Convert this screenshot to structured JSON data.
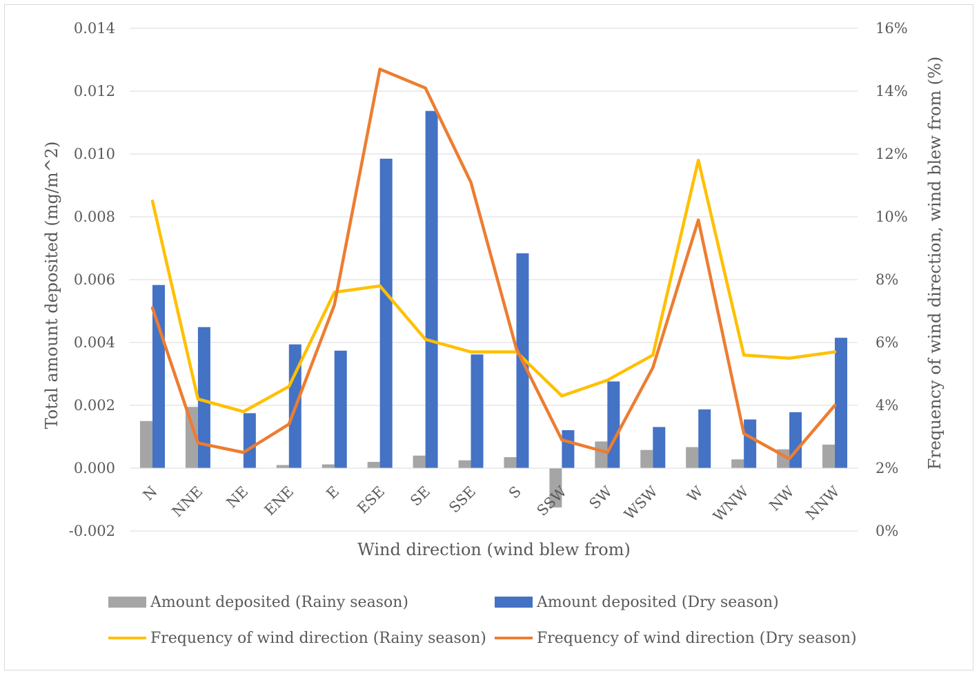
{
  "chart_data": {
    "type": "bar+line",
    "title": "",
    "xlabel": "Wind direction (wind blew from)",
    "ylabel": "Total amount deposited (mg/m^2)",
    "y2label": "Frequency of wind direction, wind blew from (%)",
    "categories": [
      "N",
      "NNE",
      "NE",
      "ENE",
      "E",
      "ESE",
      "SE",
      "SSE",
      "S",
      "SSW",
      "SW",
      "WSW",
      "W",
      "WNW",
      "NW",
      "NNW"
    ],
    "ylim": [
      -0.002,
      0.014
    ],
    "y_ticks": [
      "0.014",
      "0.012",
      "0.010",
      "0.008",
      "0.006",
      "0.004",
      "0.002",
      "0.000",
      "-0.002"
    ],
    "y_tick_values": [
      0.014,
      0.012,
      0.01,
      0.008,
      0.006,
      0.004,
      0.002,
      0.0,
      -0.002
    ],
    "y2lim": [
      0,
      16
    ],
    "y2_ticks": [
      "16%",
      "14%",
      "12%",
      "10%",
      "8%",
      "6%",
      "4%",
      "2%",
      "0%"
    ],
    "y2_tick_values": [
      16,
      14,
      12,
      10,
      8,
      6,
      4,
      2,
      0
    ],
    "grid": true,
    "legend_position": "bottom",
    "bar_series": [
      {
        "name": "Amount deposited (Rainy season)",
        "color": "#a5a5a5",
        "values": [
          0.0015,
          0.00195,
          0.0,
          0.0001,
          0.00012,
          0.0002,
          0.0004,
          0.00025,
          0.00035,
          -0.00125,
          0.00085,
          0.00058,
          0.00067,
          0.00028,
          0.0006,
          0.00075
        ]
      },
      {
        "name": "Amount deposited (Dry season)",
        "color": "#4472c4",
        "values": [
          0.00583,
          0.00449,
          0.00175,
          0.00394,
          0.00374,
          0.00985,
          0.01137,
          0.00362,
          0.00684,
          0.00121,
          0.00276,
          0.00131,
          0.00187,
          0.00155,
          0.00178,
          0.00415
        ]
      }
    ],
    "line_series": [
      {
        "name": "Frequency of wind direction (Rainy season)",
        "color": "#ffc000",
        "values": [
          10.5,
          4.2,
          3.8,
          4.6,
          7.6,
          7.8,
          6.1,
          5.7,
          5.7,
          4.3,
          4.8,
          5.6,
          11.8,
          5.6,
          5.5,
          5.7
        ]
      },
      {
        "name": "Frequency of wind direction (Dry season)",
        "color": "#ed7d31",
        "values": [
          7.1,
          2.8,
          2.5,
          3.4,
          7.2,
          14.7,
          14.1,
          11.1,
          5.8,
          2.9,
          2.5,
          5.2,
          9.9,
          3.1,
          2.3,
          4.0
        ]
      }
    ]
  }
}
